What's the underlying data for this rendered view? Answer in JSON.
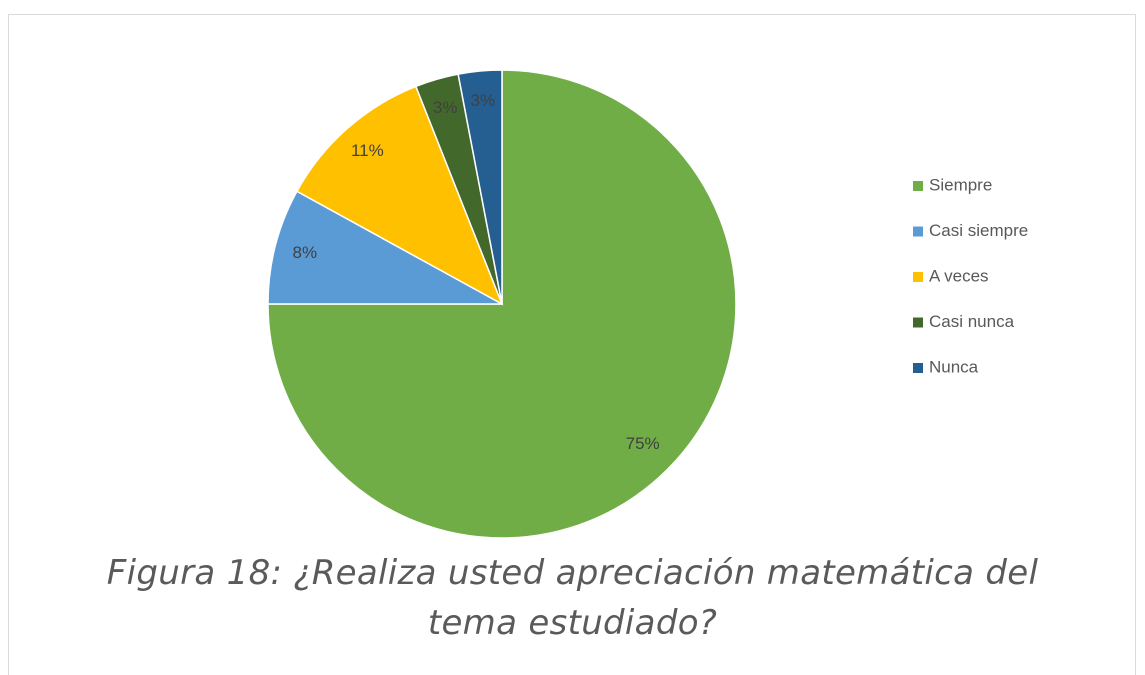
{
  "chart_data": {
    "type": "pie",
    "categories": [
      "Siempre",
      "Casi siempre",
      "A veces",
      "Casi nunca",
      "Nunca"
    ],
    "values": [
      75,
      8,
      11,
      3,
      3
    ],
    "value_labels": [
      "75%",
      "8%",
      "11%",
      "3%",
      "3%"
    ],
    "colors": [
      "#70ad47",
      "#5b9bd5",
      "#ffc000",
      "#43682b",
      "#255e91"
    ],
    "legend": "right",
    "caption": "Figura 18: ¿Realiza usted apreciación matemática del tema estudiado?"
  }
}
